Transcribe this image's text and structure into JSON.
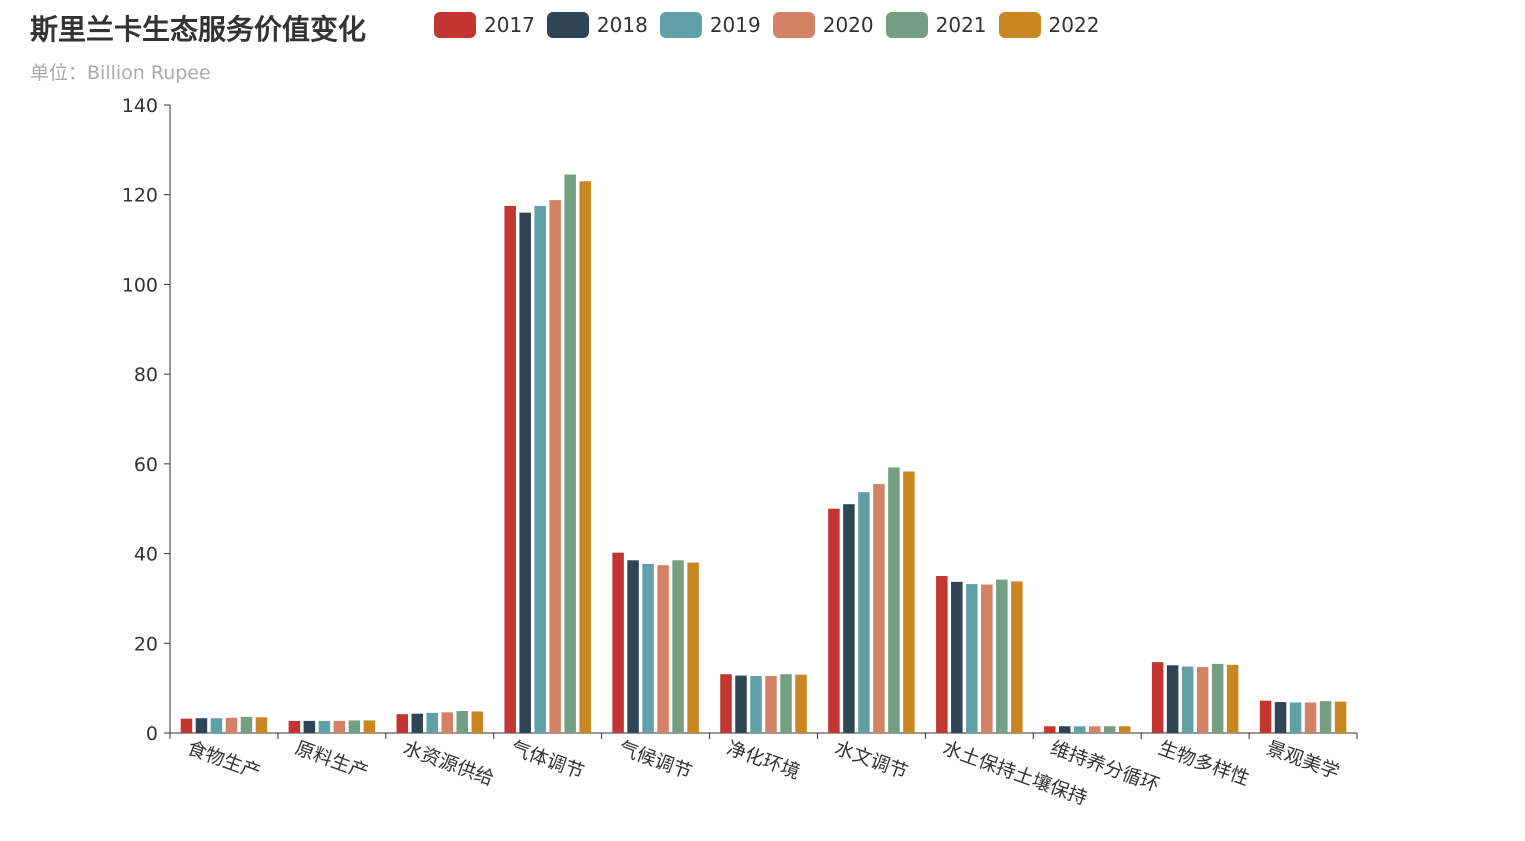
{
  "title": "斯里兰卡生态服务价值变化",
  "subtitle": "单位：Billion Rupee",
  "chart_data": {
    "type": "bar",
    "title": "斯里兰卡生态服务价值变化",
    "subtitle": "单位：Billion Rupee",
    "categories": [
      "食物生产",
      "原料生产",
      "水资源供给",
      "气体调节",
      "气候调节",
      "净化环境",
      "水文调节",
      "水土保持土壤保持",
      "维持养分循环",
      "生物多样性",
      "景观美学"
    ],
    "series": [
      {
        "name": "2017",
        "color": "#c23531",
        "values": [
          3.2,
          2.7,
          4.2,
          117.5,
          40.2,
          13.1,
          50.0,
          35.0,
          1.5,
          15.8,
          7.2
        ]
      },
      {
        "name": "2018",
        "color": "#2f4554",
        "values": [
          3.3,
          2.7,
          4.3,
          116.0,
          38.5,
          12.8,
          51.0,
          33.7,
          1.5,
          15.1,
          6.9
        ]
      },
      {
        "name": "2019",
        "color": "#61a0a8",
        "values": [
          3.3,
          2.7,
          4.5,
          117.5,
          37.7,
          12.7,
          53.7,
          33.2,
          1.5,
          14.8,
          6.8
        ]
      },
      {
        "name": "2020",
        "color": "#d48265",
        "values": [
          3.4,
          2.7,
          4.6,
          118.8,
          37.4,
          12.7,
          55.5,
          33.1,
          1.5,
          14.7,
          6.8
        ]
      },
      {
        "name": "2021",
        "color": "#749f83",
        "values": [
          3.6,
          2.8,
          4.9,
          124.5,
          38.5,
          13.1,
          59.2,
          34.2,
          1.5,
          15.4,
          7.1
        ]
      },
      {
        "name": "2022",
        "color": "#ca8622",
        "values": [
          3.5,
          2.8,
          4.8,
          123.0,
          38.0,
          13.0,
          58.3,
          33.8,
          1.5,
          15.2,
          7.0
        ]
      }
    ],
    "ylim": [
      0,
      140
    ],
    "yticks": [
      0,
      20,
      40,
      60,
      80,
      100,
      120,
      140
    ],
    "grid": false,
    "legend_position": "top"
  }
}
